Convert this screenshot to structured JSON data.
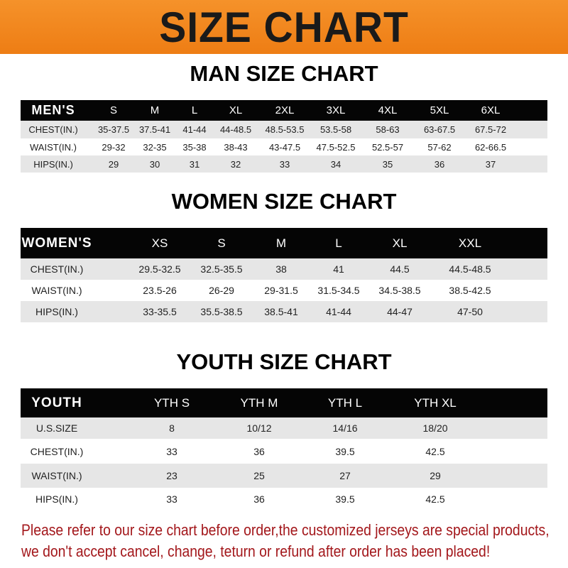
{
  "banner": {
    "title": "SIZE CHART",
    "color": "#f08a1e"
  },
  "men": {
    "title": "MAN SIZE CHART",
    "header": [
      "MEN'S",
      "S",
      "M",
      "L",
      "XL",
      "2XL",
      "3XL",
      "4XL",
      "5XL",
      "6XL"
    ],
    "rows": [
      [
        "CHEST(IN.)",
        "35-37.5",
        "37.5-41",
        "41-44",
        "44-48.5",
        "48.5-53.5",
        "53.5-58",
        "58-63",
        "63-67.5",
        "67.5-72"
      ],
      [
        "WAIST(IN.)",
        "29-32",
        "32-35",
        "35-38",
        "38-43",
        "43-47.5",
        "47.5-52.5",
        "52.5-57",
        "57-62",
        "62-66.5"
      ],
      [
        "HIPS(IN.)",
        "29",
        "30",
        "31",
        "32",
        "33",
        "34",
        "35",
        "36",
        "37"
      ]
    ]
  },
  "women": {
    "title": "WOMEN SIZE CHART",
    "header": [
      "WOMEN'S",
      "XS",
      "S",
      "M",
      "L",
      "XL",
      "XXL"
    ],
    "rows": [
      [
        "CHEST(IN.)",
        "29.5-32.5",
        "32.5-35.5",
        "38",
        "41",
        "44.5",
        "44.5-48.5"
      ],
      [
        "WAIST(IN.)",
        "23.5-26",
        "26-29",
        "29-31.5",
        "31.5-34.5",
        "34.5-38.5",
        "38.5-42.5"
      ],
      [
        "HIPS(IN.)",
        "33-35.5",
        "35.5-38.5",
        "38.5-41",
        "41-44",
        "44-47",
        "47-50"
      ]
    ]
  },
  "youth": {
    "title": "YOUTH SIZE CHART",
    "header": [
      "YOUTH",
      "YTH S",
      "YTH M",
      "YTH L",
      "YTH XL"
    ],
    "rows": [
      [
        "U.S.SIZE",
        "8",
        "10/12",
        "14/16",
        "18/20"
      ],
      [
        "CHEST(IN.)",
        "33",
        "36",
        "39.5",
        "42.5"
      ],
      [
        "WAIST(IN.)",
        "23",
        "25",
        "27",
        "29"
      ],
      [
        "HIPS(IN.)",
        "33",
        "36",
        "39.5",
        "42.5"
      ]
    ]
  },
  "notice": {
    "line1": "Please refer to our size chart before order,the customized jerseys are special products,",
    "line2": "we don't accept cancel, change, teturn or refund after order has been placed!",
    "color": "#a3171b"
  }
}
